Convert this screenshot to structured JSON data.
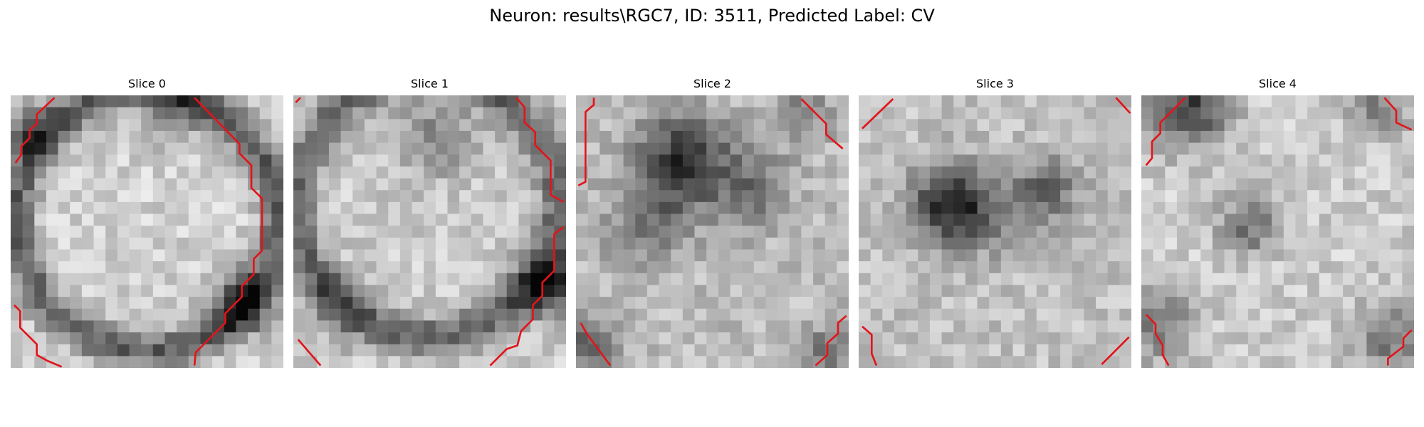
{
  "figure": {
    "title": "Neuron: results\\RGC7, ID: 3511, Predicted Label: CV"
  },
  "slices": [
    {
      "title": "Slice 0",
      "contour_color": "#e3141a",
      "image_description": "grayscale 23x23 pixel tile, bright round soma, dark rim lower edge, red contour segments at left, right and bottom edges"
    },
    {
      "title": "Slice 1",
      "contour_color": "#e3141a",
      "image_description": "grayscale tile, bright center, dark ring at bottom, red contour at right and bottom edges"
    },
    {
      "title": "Slice 2",
      "contour_color": "#e3141a",
      "image_description": "grayscale tile, dark upper-middle region, red contour at left and corners"
    },
    {
      "title": "Slice 3",
      "contour_color": "#e3141a",
      "image_description": "grayscale tile, dark blob center-left, red contour at corners"
    },
    {
      "title": "Slice 4",
      "contour_color": "#e3141a",
      "image_description": "grayscale tile, mostly bright with dark spot center, red contour at corners"
    }
  ]
}
